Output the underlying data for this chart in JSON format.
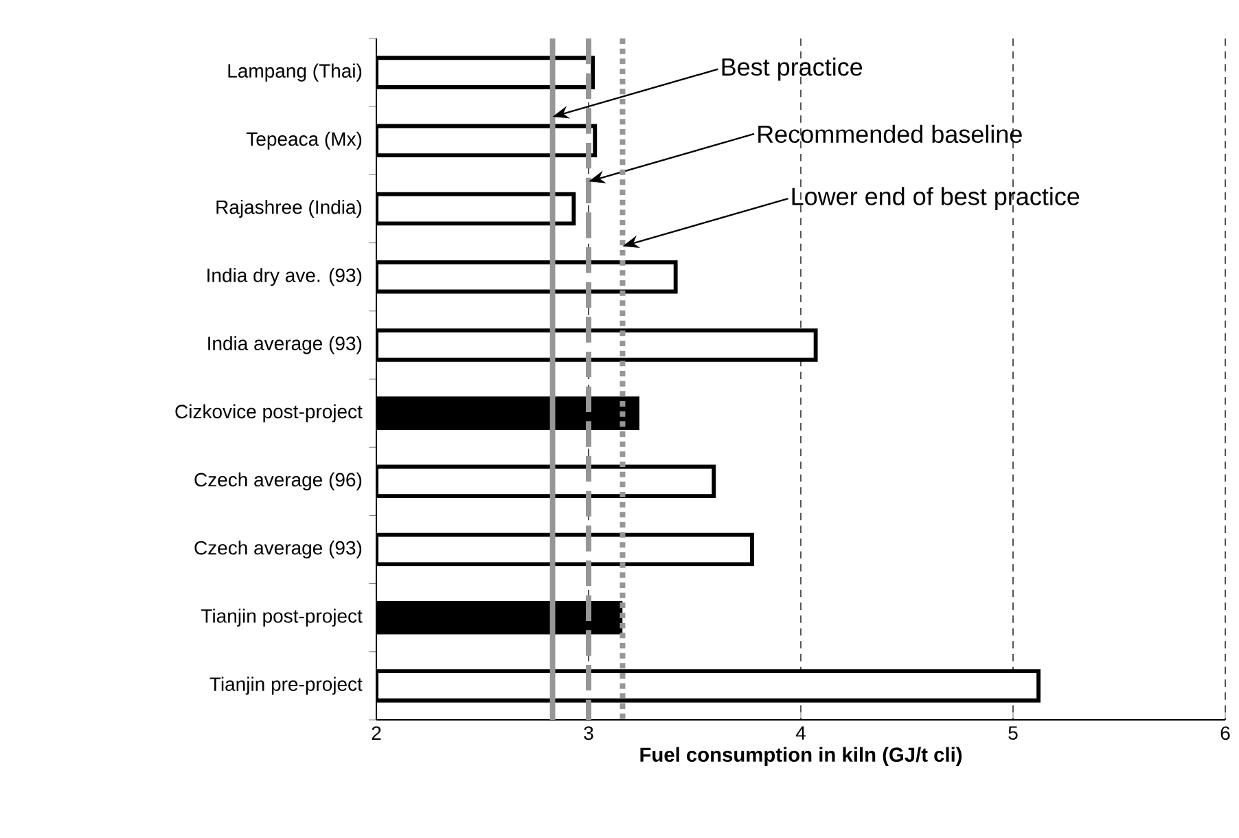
{
  "chart_data": {
    "type": "bar",
    "orientation": "horizontal",
    "xlabel": "Fuel consumption in kiln (GJ/t cli)",
    "categories": [
      "Lampang (Thai)",
      "Tepeaca (Mx)",
      "Rajashree (India)",
      "India dry ave. (93)",
      "India average (93)",
      "Cizkovice post-project",
      "Czech average (96)",
      "Czech average (93)",
      "Tianjin post-project",
      "Tianjin pre-project"
    ],
    "values": [
      3.02,
      3.03,
      2.93,
      3.41,
      4.07,
      3.23,
      3.59,
      3.77,
      3.15,
      5.12
    ],
    "colors": [
      "#ffffff",
      "#ffffff",
      "#ffffff",
      "#ffffff",
      "#ffffff",
      "#000000",
      "#ffffff",
      "#ffffff",
      "#000000",
      "#ffffff"
    ],
    "xlim": [
      2,
      6
    ],
    "xticks": [
      2,
      3,
      4,
      5,
      6
    ],
    "grid": "x",
    "ref_lines": [
      {
        "axis": "x",
        "value": 2.83,
        "label": "Best practice",
        "color": "#969696",
        "line_style": "solid"
      },
      {
        "axis": "x",
        "value": 3.0,
        "label": "Recommended baseline",
        "color": "#969696",
        "line_style": "dashed"
      },
      {
        "axis": "x",
        "value": 3.16,
        "label": "Lower end of best practice",
        "color": "#969696",
        "line_style": "dotted"
      }
    ]
  }
}
